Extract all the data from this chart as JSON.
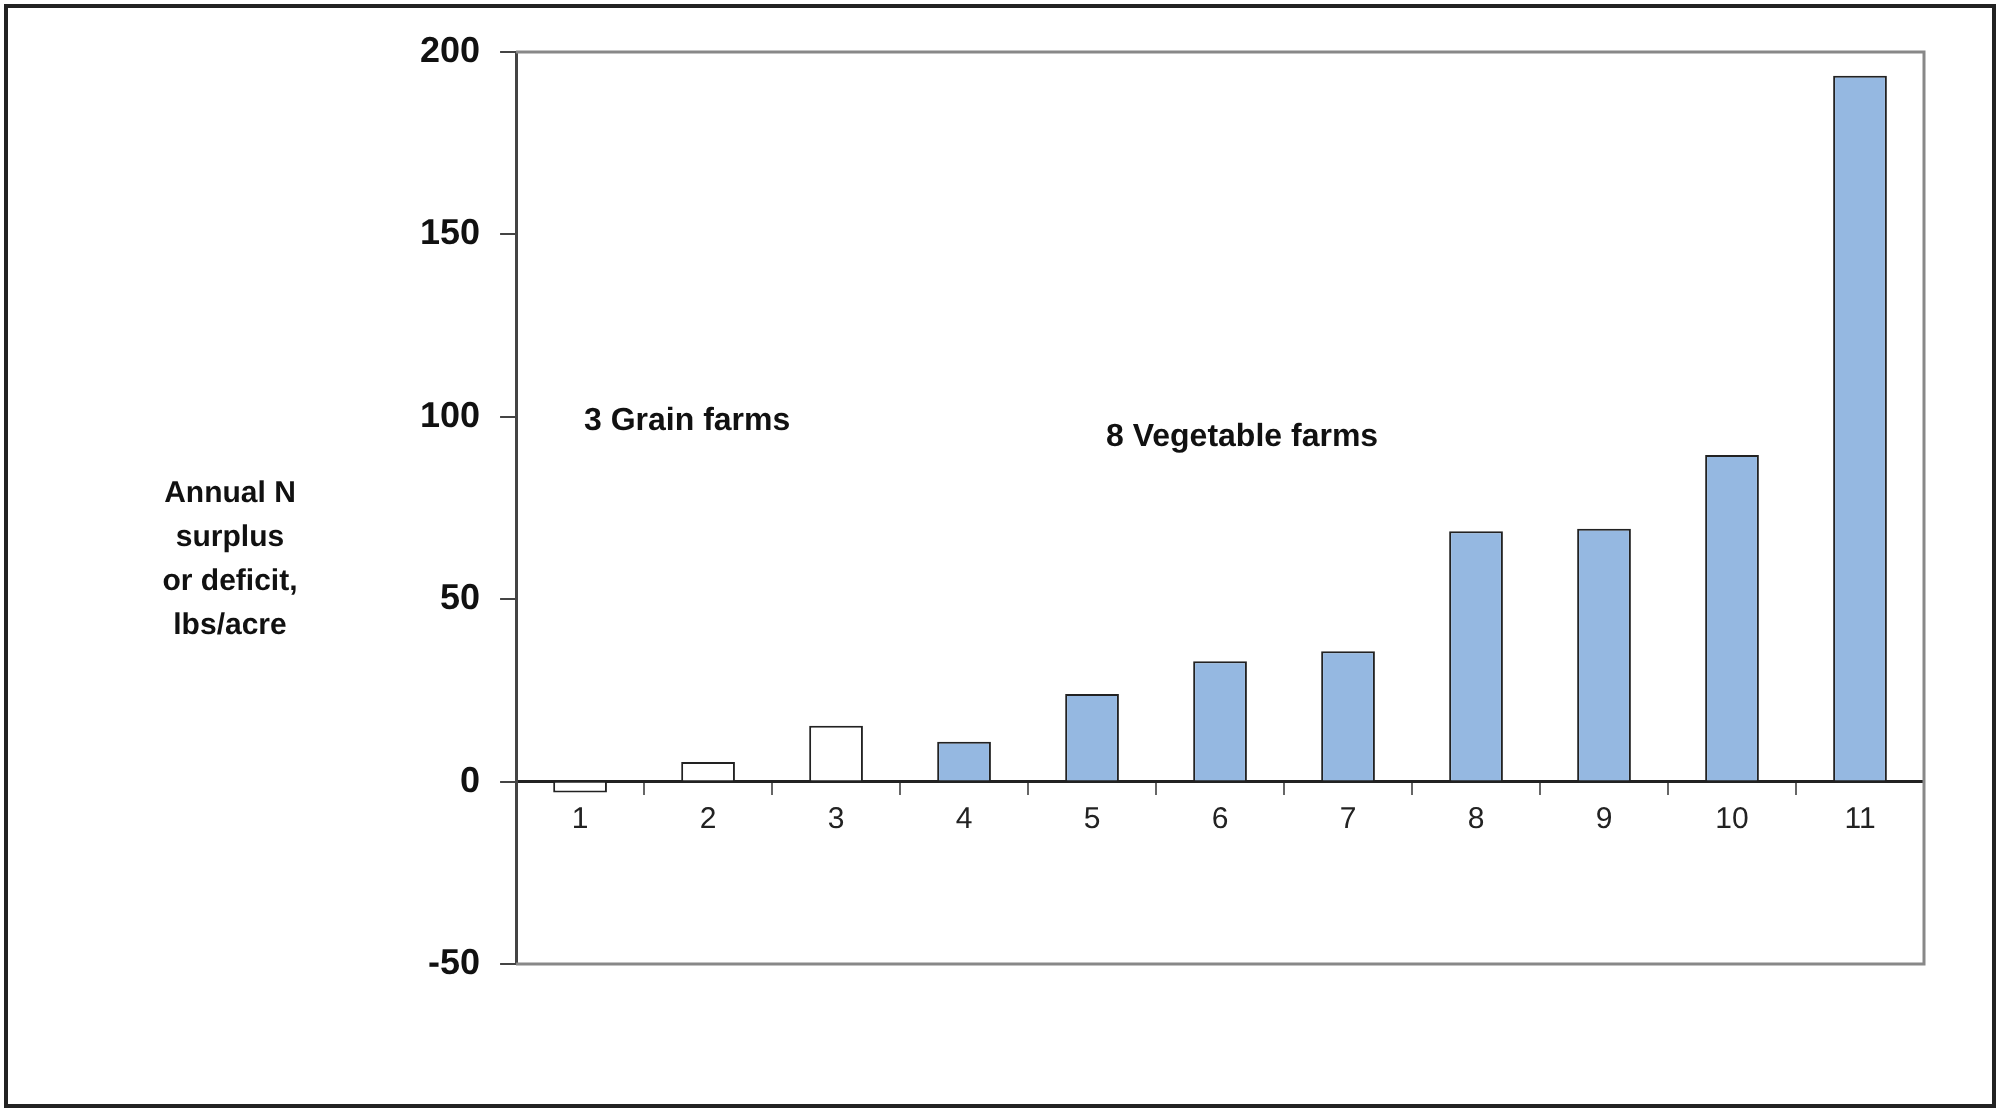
{
  "chart_data": {
    "type": "bar",
    "ylabel": "Annual N\nsurplus\nor deficit,\nlbs/acre",
    "categories": [
      "1",
      "2",
      "3",
      "4",
      "5",
      "6",
      "7",
      "8",
      "9",
      "10",
      "11"
    ],
    "values": [
      -3,
      5.4,
      15.3,
      10.9,
      24,
      33,
      35.7,
      68.6,
      69.3,
      89.5,
      193.5
    ],
    "colors": [
      "#ffffff",
      "#ffffff",
      "#ffffff",
      "#95b8e1",
      "#95b8e1",
      "#95b8e1",
      "#95b8e1",
      "#95b8e1",
      "#95b8e1",
      "#95b8e1",
      "#95b8e1"
    ],
    "ylim": [
      -50,
      200
    ],
    "yticks": [
      -50,
      0,
      50,
      100,
      150,
      200
    ],
    "grid": false,
    "legend": false,
    "annotations": [
      "3 Grain farms",
      "8 Vegetable farms"
    ]
  }
}
